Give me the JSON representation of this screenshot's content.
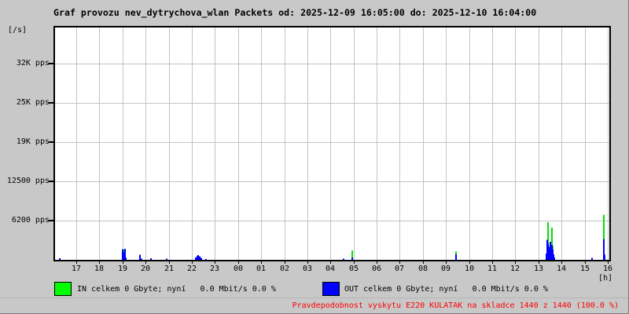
{
  "title": "Graf provozu nev_dytrychova_wlan Packets od: 2025-12-09 16:05:00 do: 2025-12-10 16:04:00",
  "colors": {
    "background": "#c8c8c8",
    "plot_background": "#ffffff",
    "grid": "#c3c3c3",
    "in_line": "#00e300",
    "out_line": "#0000ff",
    "in_swatch": "#00ff00",
    "out_swatch": "#0000ff",
    "note_text": "#ff0000"
  },
  "chart_data": {
    "type": "line",
    "title": "Graf provozu nev_dytrychova_wlan Packets od: 2025-12-09 16:05:00 do: 2025-12-10 16:04:00",
    "time_from": "2025-12-09 16:05:00",
    "time_to": "2025-12-10 16:04:00",
    "ylabel": "[/s]",
    "xlabel": "[h]",
    "ylim": [
      0,
      37000
    ],
    "grid": true,
    "y_ticks": [
      {
        "label": "6200 pps",
        "value": 6250
      },
      {
        "label": "12500 pps",
        "value": 12500
      },
      {
        "label": "19K pps",
        "value": 18750
      },
      {
        "label": "25K pps",
        "value": 25000
      },
      {
        "label": "32K pps",
        "value": 31250
      }
    ],
    "x_hour_labels": [
      "17",
      "18",
      "19",
      "20",
      "21",
      "22",
      "23",
      "00",
      "01",
      "02",
      "03",
      "04",
      "05",
      "06",
      "07",
      "08",
      "09",
      "10",
      "11",
      "12",
      "13",
      "14",
      "15",
      "16"
    ],
    "series": [
      {
        "name": "IN",
        "unit": "pps",
        "color": "#00e300"
      },
      {
        "name": "OUT",
        "unit": "pps",
        "color": "#0000ff"
      }
    ],
    "spikes": [
      {
        "time": "16:17",
        "in": 0,
        "out": 250
      },
      {
        "time": "19:00",
        "in": 0,
        "out": 1700
      },
      {
        "time": "19:02",
        "in": 1600,
        "out": 1200
      },
      {
        "time": "19:04",
        "in": 1600,
        "out": 1200
      },
      {
        "time": "19:06",
        "in": 1600,
        "out": 1750
      },
      {
        "time": "19:08",
        "in": 0,
        "out": 400
      },
      {
        "time": "19:45",
        "in": 0,
        "out": 800
      },
      {
        "time": "19:50",
        "in": 0,
        "out": 200
      },
      {
        "time": "20:14",
        "in": 0,
        "out": 250
      },
      {
        "time": "20:55",
        "in": 0,
        "out": 200
      },
      {
        "time": "22:10",
        "in": 0,
        "out": 350
      },
      {
        "time": "22:14",
        "in": 0,
        "out": 600
      },
      {
        "time": "22:17",
        "in": 0,
        "out": 750
      },
      {
        "time": "22:20",
        "in": 0,
        "out": 550
      },
      {
        "time": "22:24",
        "in": 0,
        "out": 300
      },
      {
        "time": "22:37",
        "in": 0,
        "out": 150
      },
      {
        "time": "04:34",
        "in": 0,
        "out": 200
      },
      {
        "time": "04:57",
        "in": 1500,
        "out": 400
      },
      {
        "time": "09:25",
        "in": 1300,
        "out": 900
      },
      {
        "time": "13:21",
        "in": 0,
        "out": 1000
      },
      {
        "time": "13:23",
        "in": 2500,
        "out": 3200
      },
      {
        "time": "13:25",
        "in": 6000,
        "out": 2600
      },
      {
        "time": "13:27",
        "in": 2200,
        "out": 2000
      },
      {
        "time": "13:29",
        "in": 1500,
        "out": 1800
      },
      {
        "time": "13:31",
        "in": 2800,
        "out": 2900
      },
      {
        "time": "13:33",
        "in": 1400,
        "out": 1500
      },
      {
        "time": "13:35",
        "in": 5100,
        "out": 2400
      },
      {
        "time": "13:37",
        "in": 2200,
        "out": 1600
      },
      {
        "time": "13:39",
        "in": 800,
        "out": 900
      },
      {
        "time": "13:42",
        "in": 0,
        "out": 400
      },
      {
        "time": "15:20",
        "in": 0,
        "out": 300
      },
      {
        "time": "15:50",
        "in": 7200,
        "out": 3300
      },
      {
        "time": "15:52",
        "in": 600,
        "out": 800
      }
    ]
  },
  "legend": {
    "in": {
      "label": "IN celkem 0 Gbyte; nyní   0.0 Mbit/s 0.0 %",
      "color": "#00ff00"
    },
    "out": {
      "label": "OUT celkem 0 Gbyte; nyní   0.0 Mbit/s 0.0 %",
      "color": "#0000ff"
    }
  },
  "note": {
    "text": "Pravdepodobnost vyskytu E220 KULATAK na skladce 1440 z 1440 (100.0 %)",
    "color": "#ff0000"
  }
}
